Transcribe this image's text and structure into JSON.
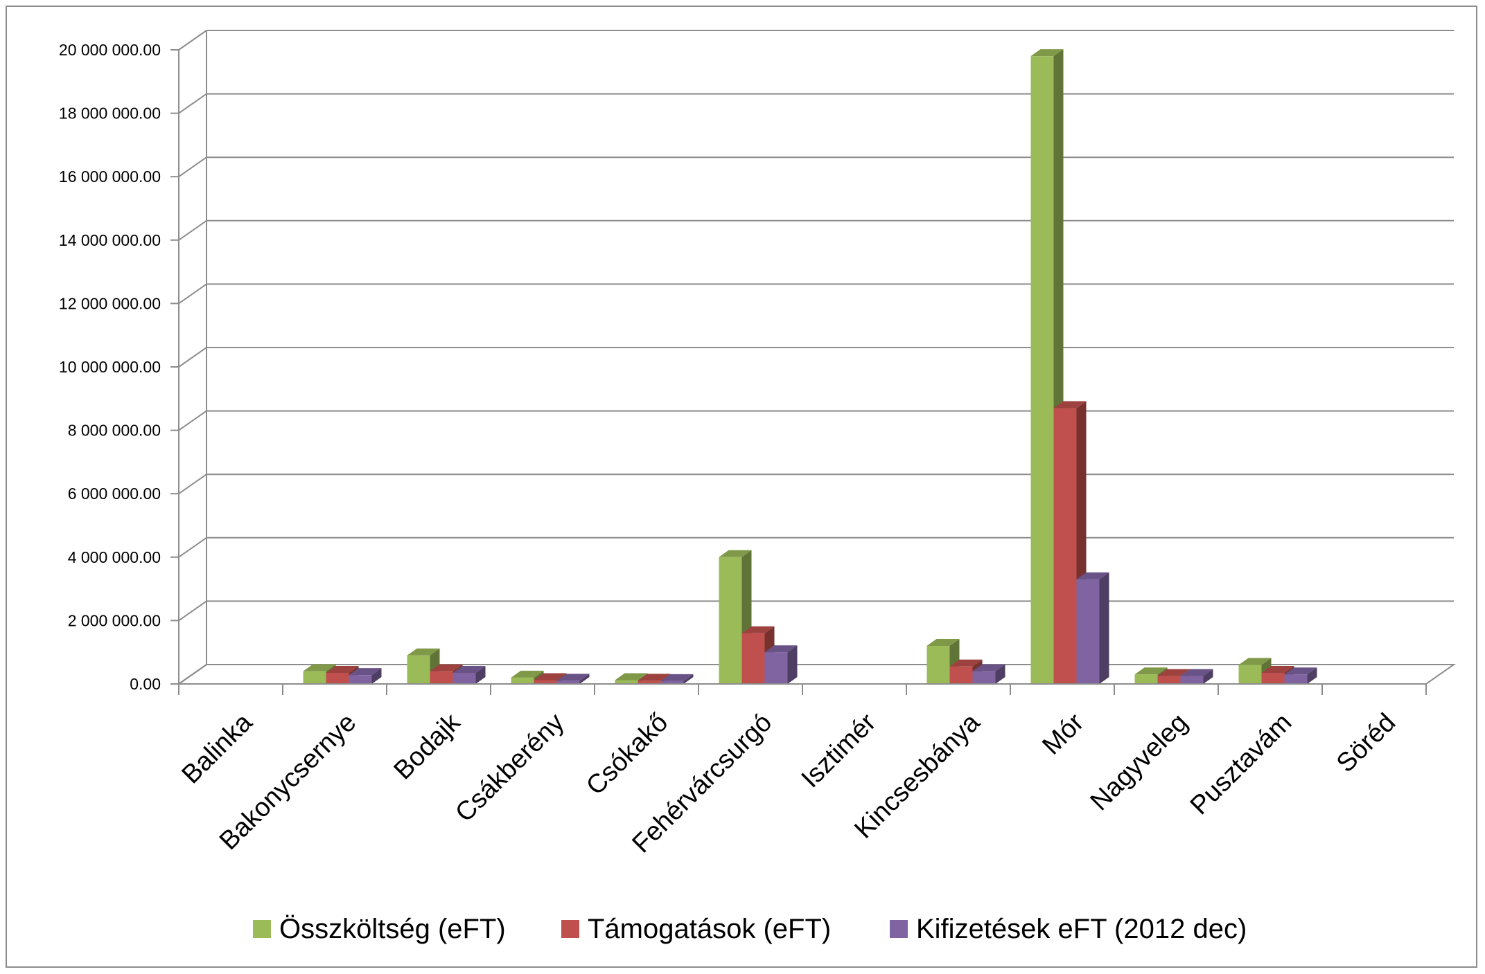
{
  "chart_data": {
    "type": "bar",
    "style": "3d-clustered-column",
    "categories": [
      "Balinka",
      "Bakonycsernye",
      "Bodajk",
      "Csákberény",
      "Csókakő",
      "Fehérvárcsurgó",
      "Isztimér",
      "Kincsesbánya",
      "Mór",
      "Nagyveleg",
      "Pusztavám",
      "Söréd"
    ],
    "series": [
      {
        "name": "Összköltség (eFT)",
        "color": "#9bbb59",
        "values": [
          0,
          400000,
          900000,
          200000,
          120000,
          4000000,
          0,
          1200000,
          19800000,
          300000,
          600000,
          0
        ]
      },
      {
        "name": "Támogatások (eFT)",
        "color": "#c0504d",
        "values": [
          0,
          350000,
          400000,
          120000,
          100000,
          1600000,
          0,
          550000,
          8700000,
          250000,
          350000,
          0
        ]
      },
      {
        "name": "Kifizetések eFT (2012 dec)",
        "color": "#8064a2",
        "values": [
          0,
          280000,
          350000,
          100000,
          90000,
          1000000,
          0,
          400000,
          3300000,
          250000,
          300000,
          0
        ]
      }
    ],
    "ylim": [
      0,
      20000000
    ],
    "ytick_step": 2000000,
    "ytick_labels": [
      "0.00",
      "2 000 000.00",
      "4 000 000.00",
      "6 000 000.00",
      "8 000 000.00",
      "10 000 000.00",
      "12 000 000.00",
      "14 000 000.00",
      "16 000 000.00",
      "18 000 000.00",
      "20 000 000.00"
    ],
    "grid": true,
    "legend_position": "bottom",
    "title": "",
    "xlabel": "",
    "ylabel": ""
  }
}
